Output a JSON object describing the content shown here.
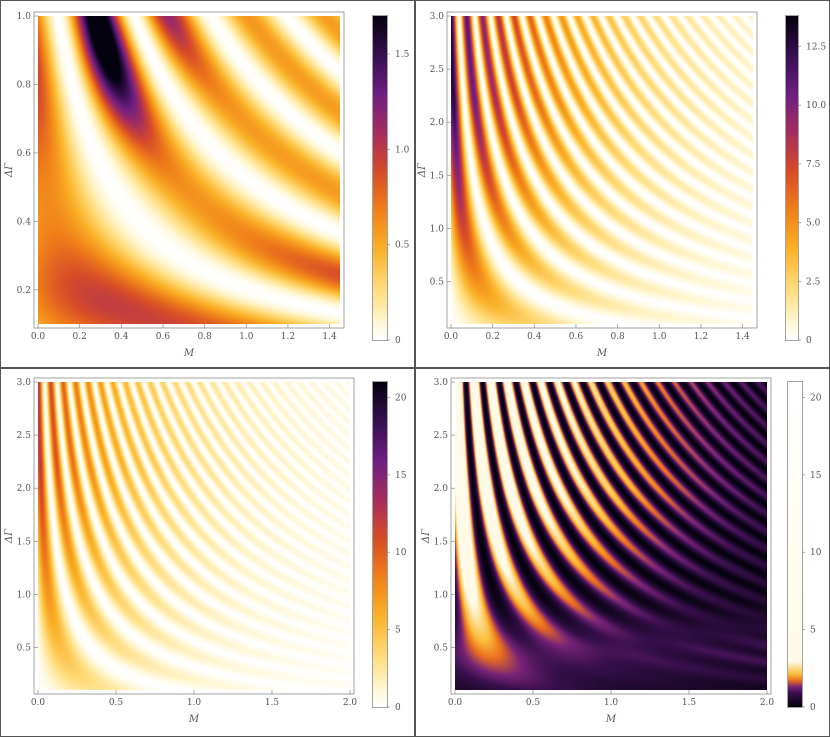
{
  "chart_data": [
    {
      "type": "heatmap",
      "panel": "top-left",
      "xlabel": "M",
      "ylabel": "ΔΓ",
      "xlim": [
        0.0,
        1.45
      ],
      "ylim": [
        0.1,
        1.0
      ],
      "xticks": [
        "0.0",
        "0.2",
        "0.4",
        "0.6",
        "0.8",
        "1.0",
        "1.2",
        "1.4"
      ],
      "yticks": [
        "0.2",
        "0.4",
        "0.6",
        "0.8",
        "1.0"
      ],
      "colorbar": {
        "range": [
          0,
          1.7
        ],
        "ticks": [
          "0",
          "0.5",
          "1.0",
          "1.5"
        ]
      },
      "color_scheme": "inferno-reversed"
    },
    {
      "type": "heatmap",
      "panel": "top-right",
      "xlabel": "M",
      "ylabel": "ΔΓ",
      "xlim": [
        0.0,
        1.45
      ],
      "ylim": [
        0.1,
        3.0
      ],
      "xticks": [
        "0.0",
        "0.2",
        "0.4",
        "0.6",
        "0.8",
        "1.0",
        "1.2",
        "1.4"
      ],
      "yticks": [
        "0.5",
        "1.0",
        "1.5",
        "2.0",
        "2.5",
        "3.0"
      ],
      "colorbar": {
        "range": [
          0,
          13.8
        ],
        "ticks": [
          "0",
          "2.5",
          "5.0",
          "7.5",
          "10.0",
          "12.5"
        ]
      },
      "color_scheme": "inferno-reversed"
    },
    {
      "type": "heatmap",
      "panel": "bottom-left",
      "xlabel": "M",
      "ylabel": "ΔΓ",
      "xlim": [
        0.0,
        2.0
      ],
      "ylim": [
        0.1,
        3.0
      ],
      "xticks": [
        "0.0",
        "0.5",
        "1.0",
        "1.5",
        "2.0"
      ],
      "yticks": [
        "0.5",
        "1.0",
        "1.5",
        "2.0",
        "2.5",
        "3.0"
      ],
      "colorbar": {
        "range": [
          0,
          21
        ],
        "ticks": [
          "0",
          "5",
          "10",
          "15",
          "20"
        ]
      },
      "color_scheme": "inferno-reversed"
    },
    {
      "type": "heatmap",
      "panel": "bottom-right",
      "xlabel": "M",
      "ylabel": "ΔΓ",
      "xlim": [
        0.0,
        2.0
      ],
      "ylim": [
        0.1,
        3.0
      ],
      "xticks": [
        "0.0",
        "0.5",
        "1.0",
        "1.5",
        "2.0"
      ],
      "yticks": [
        "0.5",
        "1.0",
        "1.5",
        "2.0",
        "2.5",
        "3.0"
      ],
      "colorbar": {
        "range": [
          0,
          21
        ],
        "ticks": [
          "0",
          "5",
          "10",
          "15",
          "20"
        ]
      },
      "color_scheme": "inferno-saturated"
    }
  ]
}
